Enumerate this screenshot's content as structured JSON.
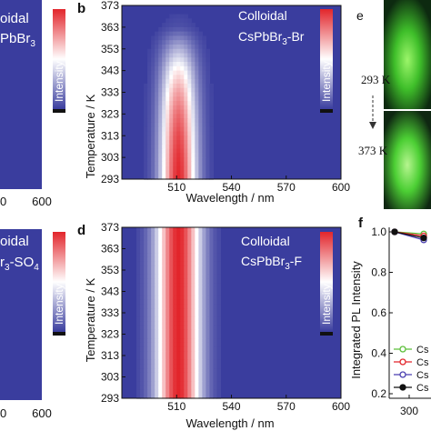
{
  "colors": {
    "background": "#3a3d9e",
    "hot": "#e2252b",
    "mid": "#ffffff",
    "colorbar_low": "#3a3d9e",
    "photo_glow": "#5fd83a"
  },
  "crop_left": {
    "a": {
      "text1": "oidal",
      "text2": "PbBr",
      "sub": "3",
      "tick": "600",
      "tick_partial": "0"
    },
    "c": {
      "text1": "oidal",
      "text2": "r",
      "sub1": "3",
      "text2b": "-SO",
      "sub2": "4",
      "tick": "600",
      "tick_partial": "0"
    }
  },
  "colorbar_label": "Intensity",
  "photo_panel": {
    "letter": "e",
    "top_label": "293 K",
    "bottom_label": "373 K"
  },
  "chart_data": [
    {
      "type": "heatmap",
      "panel": "b",
      "title": "Colloidal",
      "subtitle": "CsPbBr",
      "subtitle_sub": "3",
      "subtitle_suffix": "-Br",
      "xlabel": "Wavelength / nm",
      "ylabel": "Temperature / K",
      "xlim": [
        480,
        600
      ],
      "ylim": [
        293,
        373
      ],
      "x_ticks": [
        "510",
        "540",
        "570",
        "600"
      ],
      "y_ticks": [
        "293",
        "303",
        "313",
        "323",
        "333",
        "343",
        "353",
        "363",
        "373"
      ],
      "peak_nm": 511,
      "fwhm_nm": 16,
      "intensity_by_temperature": [
        {
          "T": 293,
          "I": 1.0
        },
        {
          "T": 303,
          "I": 0.97
        },
        {
          "T": 313,
          "I": 0.92
        },
        {
          "T": 323,
          "I": 0.84
        },
        {
          "T": 333,
          "I": 0.72
        },
        {
          "T": 343,
          "I": 0.55
        },
        {
          "T": 353,
          "I": 0.3
        },
        {
          "T": 363,
          "I": 0.05
        },
        {
          "T": 373,
          "I": 0.0
        }
      ]
    },
    {
      "type": "heatmap",
      "panel": "d",
      "title": "Colloidal",
      "subtitle": "CsPbBr",
      "subtitle_sub": "3",
      "subtitle_suffix": "-F",
      "xlabel": "Wavelength / nm",
      "ylabel": "Temperature / K",
      "xlim": [
        480,
        600
      ],
      "ylim": [
        293,
        373
      ],
      "x_ticks": [
        "510",
        "540",
        "570",
        "600"
      ],
      "y_ticks": [
        "293",
        "303",
        "313",
        "323",
        "333",
        "343",
        "353",
        "363",
        "373"
      ],
      "peak_nm": 511,
      "fwhm_nm": 20,
      "intensity_by_temperature": [
        {
          "T": 293,
          "I": 1.0
        },
        {
          "T": 303,
          "I": 1.0
        },
        {
          "T": 313,
          "I": 1.0
        },
        {
          "T": 323,
          "I": 1.0
        },
        {
          "T": 333,
          "I": 1.0
        },
        {
          "T": 343,
          "I": 1.0
        },
        {
          "T": 353,
          "I": 1.0
        },
        {
          "T": 363,
          "I": 1.0
        },
        {
          "T": 373,
          "I": 1.0
        }
      ]
    },
    {
      "type": "line",
      "panel": "f",
      "ylabel": "Integrated PL Intensity",
      "ylim": [
        0.2,
        1.0
      ],
      "y_ticks": [
        "0.2",
        "0.4",
        "0.6",
        "0.8",
        "1.0"
      ],
      "x_tick_partial": "300",
      "legend_prefix": "Cs",
      "series": [
        {
          "color": "#5cbf3a",
          "values": [
            1.0,
            0.99
          ]
        },
        {
          "color": "#e2252b",
          "values": [
            1.0,
            0.98
          ]
        },
        {
          "color": "#4a3fb0",
          "values": [
            1.0,
            0.96
          ]
        },
        {
          "color": "#111111",
          "values": [
            1.0,
            0.97
          ]
        }
      ]
    }
  ]
}
